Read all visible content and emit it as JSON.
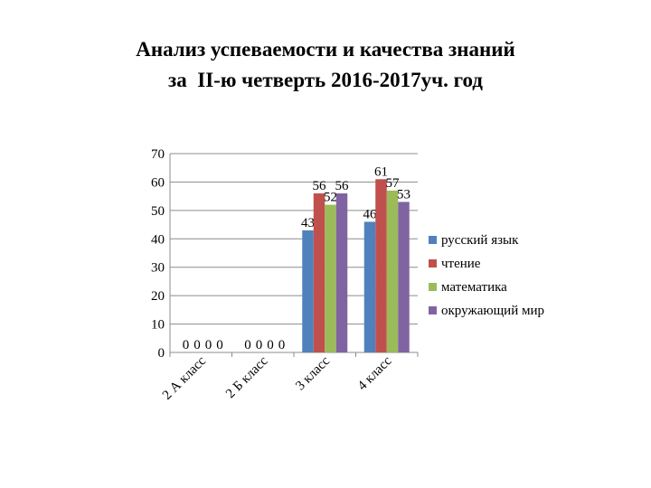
{
  "title_line1": "Анализ успеваемости и качества знаний",
  "title_line2": "за  II-ю четверть 2016-2017уч. год",
  "chart_data": {
    "type": "bar",
    "categories": [
      "2 А класс",
      "2 Б класс",
      "3 класс",
      "4 класс"
    ],
    "series": [
      {
        "name": "русский язык",
        "color": "#4F81BD",
        "values": [
          0,
          0,
          43,
          46
        ]
      },
      {
        "name": "чтение",
        "color": "#C0504D",
        "values": [
          0,
          0,
          56,
          61
        ]
      },
      {
        "name": "математика",
        "color": "#9BBB59",
        "values": [
          0,
          0,
          52,
          57
        ]
      },
      {
        "name": "окружающий мир",
        "color": "#8064A2",
        "values": [
          0,
          0,
          56,
          53
        ]
      }
    ],
    "yticks": [
      0,
      10,
      20,
      30,
      40,
      50,
      60,
      70
    ],
    "ylim": [
      0,
      70
    ],
    "grid": true,
    "legend": "right"
  }
}
